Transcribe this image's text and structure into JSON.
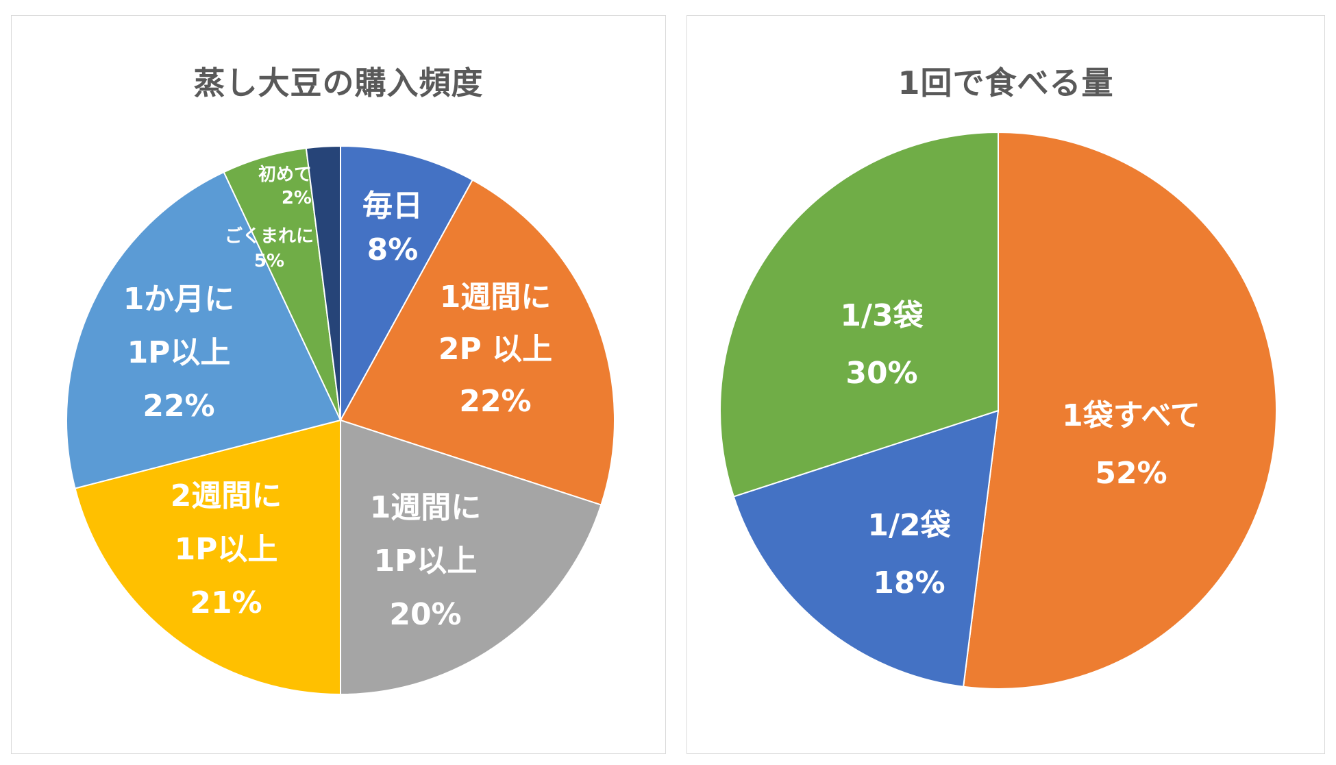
{
  "chart_data": [
    {
      "type": "pie",
      "title": "蒸し大豆の購入頻度",
      "slices": [
        {
          "label_lines": [
            "毎日"
          ],
          "value": 8,
          "percent": "8%",
          "color": "#4472c4"
        },
        {
          "label_lines": [
            "1週間に",
            "2P 以上"
          ],
          "value": 22,
          "percent": "22%",
          "color": "#ed7d31"
        },
        {
          "label_lines": [
            "1週間に",
            "1P以上"
          ],
          "value": 20,
          "percent": "20%",
          "color": "#a5a5a5"
        },
        {
          "label_lines": [
            "2週間に",
            "1P以上"
          ],
          "value": 21,
          "percent": "21%",
          "color": "#ffc000"
        },
        {
          "label_lines": [
            "1か月に",
            "1P以上"
          ],
          "value": 22,
          "percent": "22%",
          "color": "#5b9bd5"
        },
        {
          "label_lines": [
            "ごくまれに"
          ],
          "value": 5,
          "percent": "5%",
          "color": "#70ad47"
        },
        {
          "label_lines": [
            "初めて"
          ],
          "value": 2,
          "percent": "2%",
          "color": "#264478"
        }
      ]
    },
    {
      "type": "pie",
      "title": "1回で食べる量",
      "slices": [
        {
          "label_lines": [
            "1袋すべて"
          ],
          "value": 52,
          "percent": "52%",
          "color": "#ed7d31"
        },
        {
          "label_lines": [
            "1/2袋"
          ],
          "value": 18,
          "percent": "18%",
          "color": "#4472c4"
        },
        {
          "label_lines": [
            "1/3袋"
          ],
          "value": 30,
          "percent": "30%",
          "color": "#70ad47"
        }
      ]
    }
  ]
}
